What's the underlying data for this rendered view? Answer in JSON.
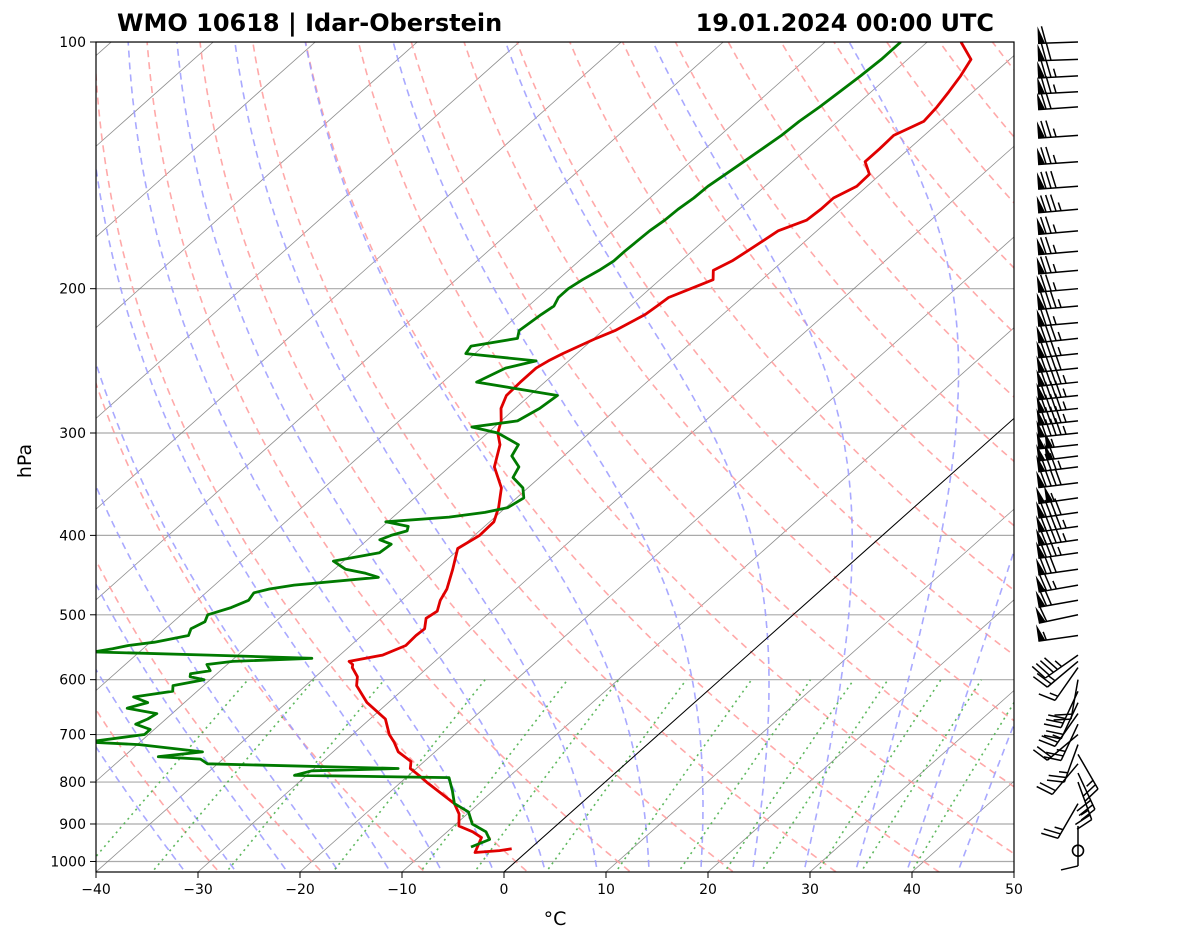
{
  "header": {
    "left_title": "WMO 10618 | Idar-Oberstein",
    "right_title": "19.01.2024 00:00 UTC"
  },
  "axes": {
    "xlabel": "°C",
    "ylabel": "hPa"
  },
  "colors": {
    "temperature": "#e00000",
    "dewpoint": "#007a00",
    "dry_adiabat": "#ff9a9a",
    "moist_adiabat": "#9a9aff",
    "mixing_ratio": "#4cb04c",
    "isotherm": "#707070",
    "isobar": "#aaaaaa"
  },
  "chart_data": {
    "type": "line",
    "diagram": "skew-T log-p",
    "xlim": [
      -40,
      50
    ],
    "ylim": [
      1030,
      100
    ],
    "y_scale": "log",
    "x_ticks": [
      -40,
      -30,
      -20,
      -10,
      0,
      10,
      20,
      30,
      40,
      50
    ],
    "y_ticks": [
      100,
      200,
      300,
      400,
      500,
      600,
      700,
      800,
      900,
      1000
    ],
    "series": [
      {
        "key": "temperature",
        "pressure": [
          965,
          970,
          975,
          935,
          920,
          905,
          875,
          850,
          800,
          785,
          770,
          755,
          735,
          715,
          700,
          670,
          640,
          610,
          595,
          580,
          575,
          570,
          560,
          545,
          530,
          520,
          505,
          495,
          480,
          465,
          440,
          415,
          400,
          385,
          370,
          350,
          330,
          310,
          300,
          290,
          280,
          270,
          260,
          250,
          245,
          240,
          230,
          225,
          215,
          210,
          205,
          200,
          195,
          190,
          185,
          180,
          175,
          170,
          165,
          160,
          155,
          150,
          145,
          140,
          135,
          130,
          125,
          120,
          115,
          110,
          105,
          100
        ],
        "temperature_c": [
          -1.8,
          -2.8,
          -5.0,
          -6.0,
          -7.5,
          -9.5,
          -10.8,
          -12.4,
          -17.5,
          -19.0,
          -20.6,
          -21.3,
          -23.6,
          -25.1,
          -26.4,
          -28.5,
          -32.1,
          -35.0,
          -35.9,
          -37.4,
          -37.7,
          -38.4,
          -35.8,
          -34.6,
          -34.7,
          -34.6,
          -35.6,
          -35.3,
          -36.2,
          -36.8,
          -38.4,
          -40.2,
          -39.5,
          -39.6,
          -40.7,
          -42.6,
          -45.6,
          -47.5,
          -49.0,
          -50.0,
          -51.4,
          -52.3,
          -52.4,
          -52.4,
          -52.0,
          -51.4,
          -49.8,
          -48.8,
          -47.6,
          -47.4,
          -47.2,
          -46.0,
          -44.8,
          -45.8,
          -45.0,
          -44.6,
          -44.2,
          -43.8,
          -42.2,
          -42.0,
          -42.0,
          -41.0,
          -41.1,
          -42.9,
          -42.9,
          -43.0,
          -41.6,
          -41.9,
          -42.4,
          -43.0,
          -43.8,
          -46.7
        ]
      },
      {
        "key": "dewpoint",
        "pressure": [
          960,
          940,
          920,
          900,
          870,
          850,
          820,
          790,
          785,
          775,
          770,
          760,
          750,
          745,
          735,
          720,
          715,
          700,
          690,
          680,
          670,
          660,
          650,
          640,
          630,
          620,
          610,
          600,
          595,
          590,
          585,
          575,
          570,
          565,
          560,
          555,
          550,
          545,
          540,
          530,
          520,
          510,
          500,
          490,
          480,
          470,
          465,
          460,
          450,
          445,
          440,
          430,
          420,
          410,
          405,
          400,
          395,
          390,
          385,
          380,
          375,
          370,
          360,
          350,
          340,
          330,
          320,
          310,
          300,
          295,
          290,
          280,
          270,
          260,
          250,
          245,
          240,
          235,
          230,
          225,
          215,
          210,
          205,
          200,
          195,
          190,
          185,
          180,
          175,
          170,
          165,
          160,
          155,
          150,
          145,
          140,
          135,
          130,
          125,
          120,
          115,
          110,
          105,
          100
        ],
        "dewpoint_c": [
          -6.0,
          -5.0,
          -6.2,
          -8.4,
          -10.1,
          -12.4,
          -14.0,
          -15.8,
          -31.2,
          -30.0,
          -21.8,
          -41.0,
          -42.2,
          -46.6,
          -42.8,
          -49.8,
          -55.2,
          -50.4,
          -50.4,
          -52.4,
          -51.8,
          -51.5,
          -55.0,
          -53.6,
          -55.6,
          -52.4,
          -53.0,
          -50.6,
          -52.3,
          -52.6,
          -51.0,
          -52.0,
          -49.8,
          -42.4,
          -52.8,
          -64.5,
          -63.0,
          -61.8,
          -59.6,
          -57.0,
          -57.5,
          -56.9,
          -57.4,
          -55.9,
          -55.0,
          -55.3,
          -54.2,
          -52.2,
          -44.8,
          -46.5,
          -48.9,
          -51.0,
          -47.4,
          -47.2,
          -48.8,
          -48.2,
          -47.1,
          -47.5,
          -50.2,
          -44.5,
          -41.5,
          -39.8,
          -39.3,
          -40.5,
          -42.6,
          -43.2,
          -45.1,
          -45.7,
          -49.0,
          -52.2,
          -48.4,
          -47.6,
          -47.3,
          -56.7,
          -55.4,
          -53.2,
          -60.9,
          -61.2,
          -57.5,
          -58.2,
          -57.8,
          -57.5,
          -58.0,
          -58.0,
          -57.6,
          -57.0,
          -56.6,
          -56.6,
          -56.5,
          -56.4,
          -56.1,
          -56.0,
          -55.7,
          -55.6,
          -55.2,
          -54.8,
          -54.4,
          -54.0,
          -53.8,
          -53.4,
          -53.1,
          -52.8,
          -52.6,
          -52.6
        ]
      }
    ],
    "wind_barbs": {
      "pressure": [
        970,
        905,
        850,
        800,
        780,
        760,
        740,
        720,
        700,
        680,
        660,
        640,
        620,
        600,
        580,
        570,
        560,
        530,
        500,
        480,
        460,
        440,
        420,
        405,
        390,
        375,
        360,
        345,
        330,
        320,
        310,
        300,
        290,
        280,
        270,
        260,
        250,
        240,
        230,
        220,
        210,
        200,
        190,
        180,
        170,
        160,
        150,
        140,
        130,
        120,
        115,
        110,
        105,
        100
      ],
      "speed_kt": [
        0,
        10,
        25,
        25,
        30,
        20,
        25,
        25,
        20,
        25,
        25,
        20,
        30,
        20,
        15,
        25,
        45,
        55,
        60,
        70,
        75,
        80,
        85,
        95,
        95,
        90,
        105,
        90,
        85,
        110,
        105,
        95,
        95,
        95,
        95,
        95,
        90,
        85,
        85,
        75,
        85,
        75,
        75,
        75,
        75,
        85,
        80,
        75,
        75,
        70,
        75,
        75,
        70,
        60
      ],
      "direction_deg": [
        0,
        180,
        210,
        160,
        155,
        220,
        150,
        200,
        230,
        205,
        215,
        205,
        205,
        190,
        215,
        230,
        235,
        262,
        258,
        260,
        260,
        262,
        262,
        262,
        262,
        262,
        262,
        263,
        263,
        263,
        264,
        264,
        264,
        264,
        264,
        264,
        264,
        264,
        264,
        265,
        265,
        265,
        265,
        265,
        265,
        265,
        266,
        266,
        266,
        266,
        267,
        267,
        268,
        268
      ]
    }
  }
}
